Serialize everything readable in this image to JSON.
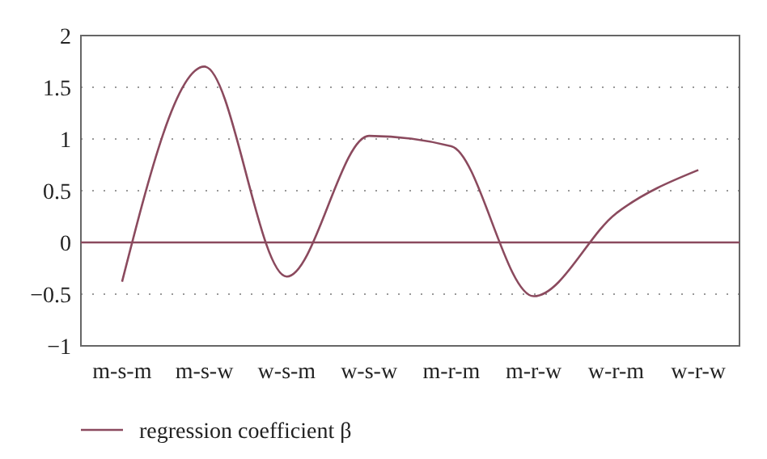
{
  "chart_data": {
    "type": "line",
    "categories": [
      "m-s-m",
      "m-s-w",
      "w-s-m",
      "w-s-w",
      "m-r-m",
      "m-r-w",
      "w-r-m",
      "w-r-w"
    ],
    "series": [
      {
        "name": "regression coefficient β",
        "color": "#8b4a5e",
        "values": [
          -0.38,
          1.7,
          -0.33,
          1.03,
          0.93,
          -0.52,
          0.28,
          0.7
        ]
      }
    ],
    "ylim": [
      -1,
      2
    ],
    "yticks": [
      {
        "value": -1,
        "label": "−1"
      },
      {
        "value": -0.5,
        "label": "−0.5"
      },
      0,
      0.5,
      1,
      1.5,
      2
    ],
    "grid": "y",
    "ref_lines": [
      {
        "axis": "y",
        "value": 0,
        "color": "#8b4a5e",
        "line_style": "solid"
      }
    ],
    "legend": "bottom",
    "marker": "none",
    "line_style": "solid"
  }
}
